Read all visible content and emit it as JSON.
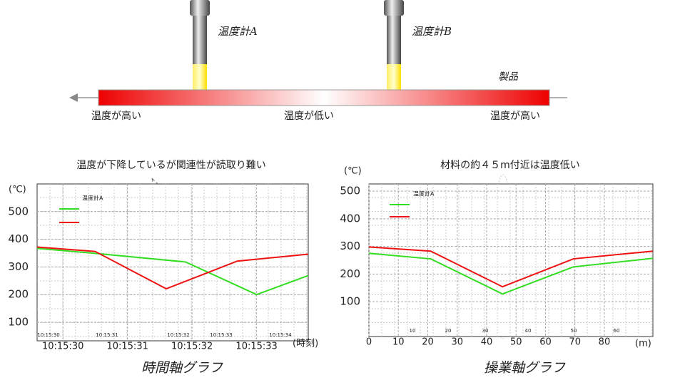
{
  "diagram": {
    "sensors": [
      "温度計A",
      "温度計B"
    ],
    "product": "製品",
    "zones": [
      "温度が高い",
      "温度が低い",
      "温度が高い"
    ]
  },
  "chart_data": [
    {
      "type": "line",
      "title": "温度が下降しているが関連性が読取り難い",
      "caption": "時間軸グラフ",
      "y_label": "(℃)",
      "x_label": "(時刻)",
      "xlim": [
        29.6,
        33.8
      ],
      "xticks": [
        {
          "value": 30,
          "label": "10:15:30"
        },
        {
          "value": 31,
          "label": "10:15:31"
        },
        {
          "value": 32,
          "label": "10:15:32"
        },
        {
          "value": 33,
          "label": "10:15:33"
        }
      ],
      "ylim": [
        33,
        600
      ],
      "yticks": [
        100,
        200,
        300,
        400,
        500
      ],
      "grid": true,
      "inner_labels": [
        "10:15:30",
        "10:15:31",
        "10:15:32",
        "10:15:33",
        "10:15:34"
      ],
      "series": [
        {
          "name": "温度計A",
          "color": "#33dd22",
          "x": [
            29.6,
            30.5,
            31.9,
            33.0,
            33.8
          ],
          "values": [
            367,
            349,
            318,
            200,
            269
          ]
        },
        {
          "color": "#ee1111",
          "x": [
            29.6,
            30.5,
            31.6,
            32.7,
            33.8
          ],
          "values": [
            372,
            356,
            221,
            321,
            346
          ]
        }
      ]
    },
    {
      "type": "line",
      "title": "材料の約４５m付近は温度低い",
      "caption": "操業軸グラフ",
      "y_label": "(℃)",
      "x_label": "(m)",
      "xlim": [
        0,
        96.5
      ],
      "xticks": [
        0,
        10,
        20,
        30,
        40,
        50,
        60,
        70,
        80
      ],
      "ylim": [
        -26,
        526
      ],
      "yticks": [
        100,
        200,
        300,
        400,
        500
      ],
      "grid": true,
      "inner_labels": [
        "10",
        "20",
        "30",
        "40",
        "50",
        "60"
      ],
      "series": [
        {
          "name": "温度計A",
          "color": "#33dd22",
          "x": [
            0,
            21,
            45.4,
            69.5,
            96.5
          ],
          "values": [
            275,
            255,
            128,
            226,
            257
          ]
        },
        {
          "color": "#ee1111",
          "x": [
            0,
            21,
            45.4,
            69.5,
            96.5
          ],
          "values": [
            298,
            283,
            154,
            255,
            283
          ]
        }
      ]
    }
  ]
}
